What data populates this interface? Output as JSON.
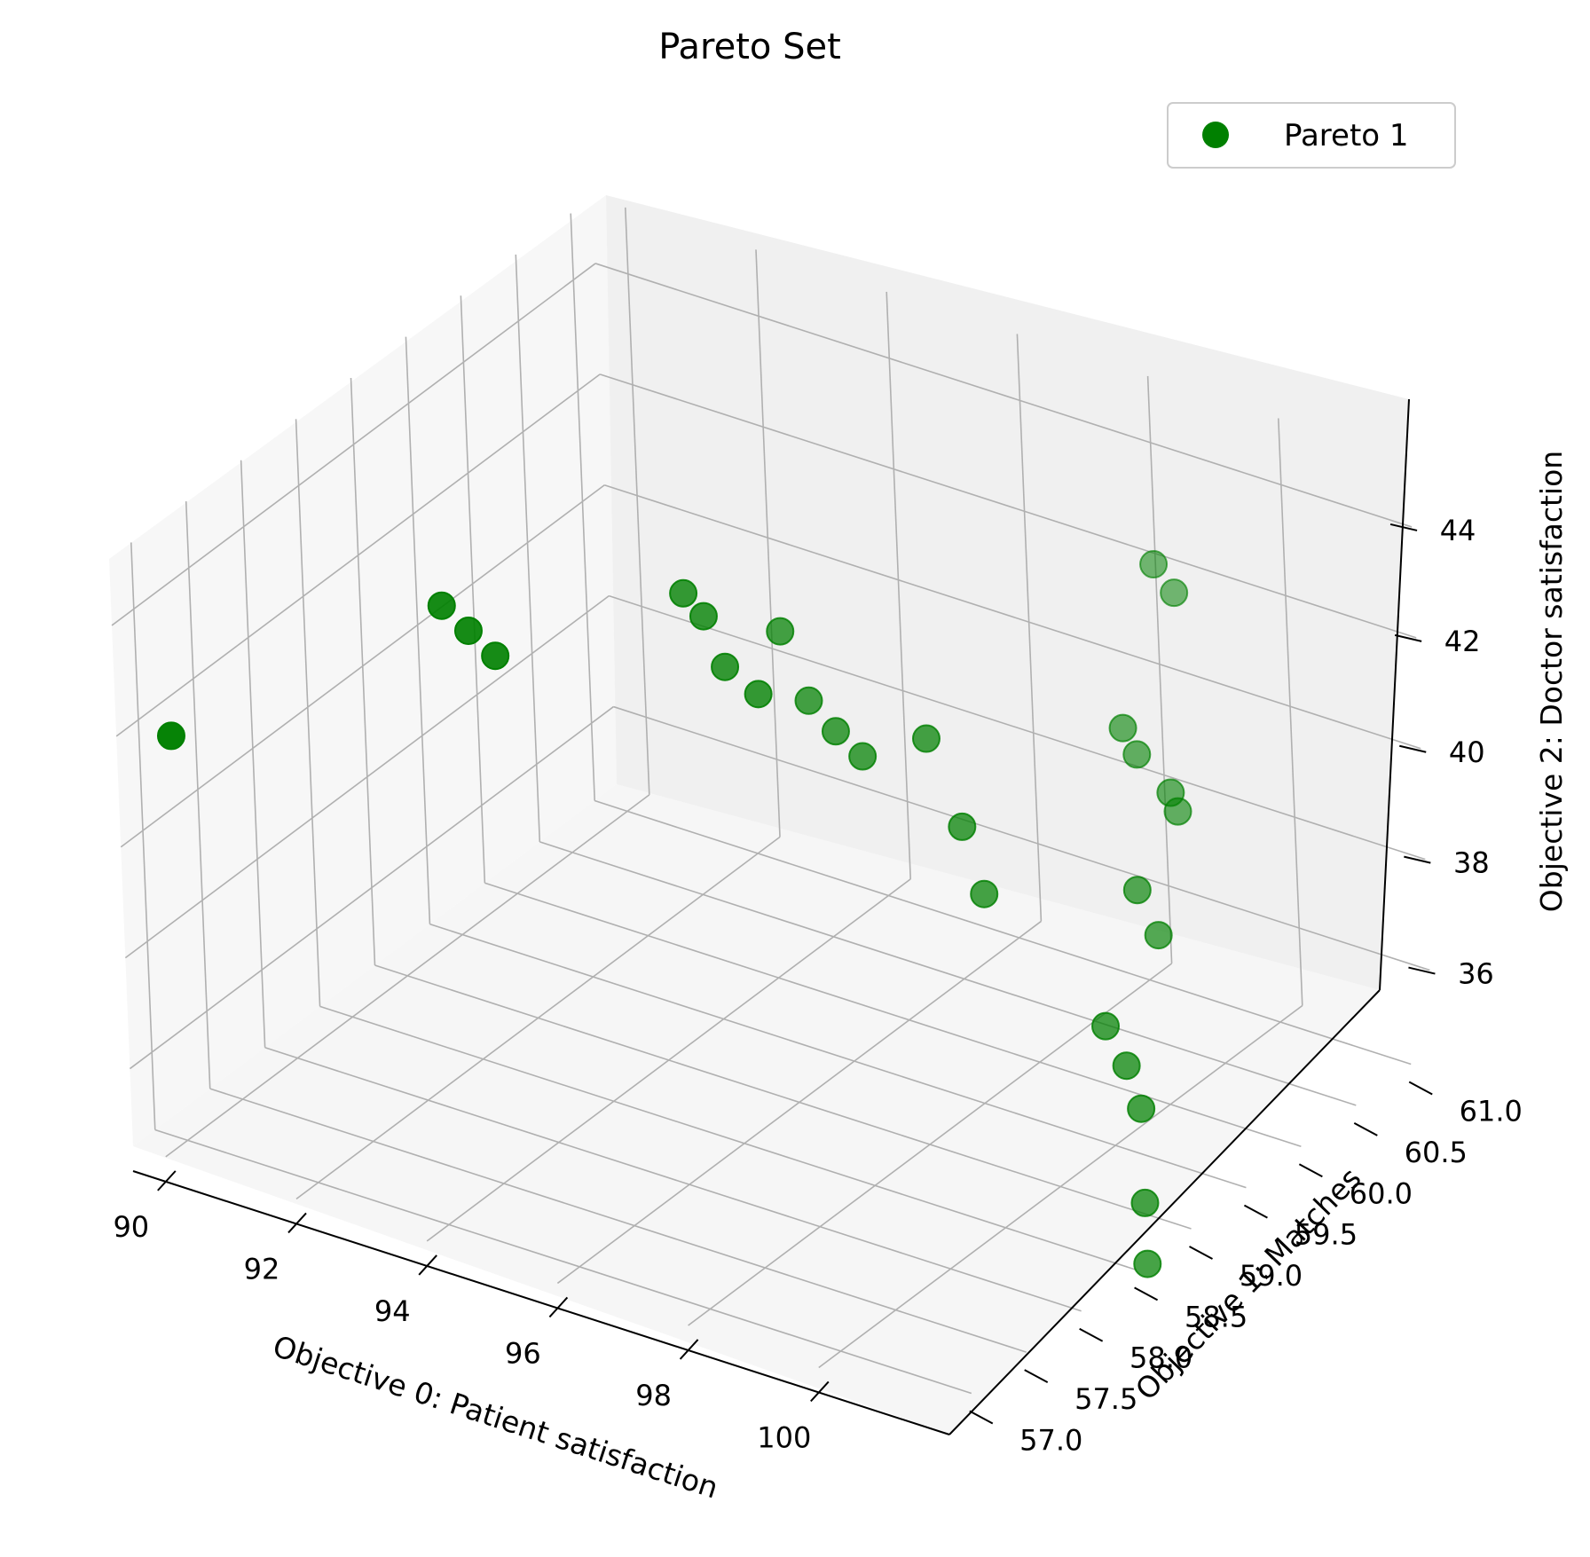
{
  "chart_data": {
    "type": "scatter",
    "title": "Pareto Set",
    "xlabel": "Objective 0: Patient satisfaction",
    "ylabel": "Objective 1: Matches",
    "zlabel": "Objective 2: Doctor satisfaction",
    "x_ticks": [
      "90",
      "92",
      "94",
      "96",
      "98",
      "100"
    ],
    "y_ticks": [
      "57.0",
      "57.5",
      "58.0",
      "58.5",
      "59.0",
      "59.5",
      "60.0",
      "60.5",
      "61.0"
    ],
    "z_ticks": [
      "36",
      "38",
      "40",
      "42",
      "44"
    ],
    "xlim": [
      89.5,
      102
    ],
    "ylim": [
      56.8,
      61.2
    ],
    "zlim": [
      34.6,
      45.2
    ],
    "grid": true,
    "legend_position": "top-right",
    "series": [
      {
        "name": "Pareto 1",
        "color": "#008000",
        "points": [
          {
            "x": 90.0,
            "y": 57.0,
            "z": 41.9
          },
          {
            "x": 93.4,
            "y": 57.5,
            "z": 44.8
          },
          {
            "x": 93.8,
            "y": 57.5,
            "z": 44.5
          },
          {
            "x": 94.2,
            "y": 57.5,
            "z": 44.2
          },
          {
            "x": 95.4,
            "y": 58.5,
            "z": 44.3
          },
          {
            "x": 95.7,
            "y": 58.5,
            "z": 44.0
          },
          {
            "x": 96.0,
            "y": 58.5,
            "z": 43.2
          },
          {
            "x": 96.5,
            "y": 58.5,
            "z": 42.9
          },
          {
            "x": 96.0,
            "y": 59.0,
            "z": 43.1
          },
          {
            "x": 96.4,
            "y": 59.0,
            "z": 42.0
          },
          {
            "x": 96.8,
            "y": 59.0,
            "z": 41.6
          },
          {
            "x": 97.2,
            "y": 59.0,
            "z": 41.3
          },
          {
            "x": 98.2,
            "y": 59.0,
            "z": 42.0
          },
          {
            "x": 98.7,
            "y": 59.0,
            "z": 40.6
          },
          {
            "x": 99.0,
            "y": 59.0,
            "z": 39.5
          },
          {
            "x": 99.2,
            "y": 60.5,
            "z": 43.3
          },
          {
            "x": 99.5,
            "y": 60.5,
            "z": 42.9
          },
          {
            "x": 99.5,
            "y": 60.0,
            "z": 41.2
          },
          {
            "x": 99.7,
            "y": 60.0,
            "z": 40.8
          },
          {
            "x": 100.2,
            "y": 60.0,
            "z": 40.3
          },
          {
            "x": 100.3,
            "y": 60.0,
            "z": 40.0
          },
          {
            "x": 100.5,
            "y": 59.5,
            "z": 39.4
          },
          {
            "x": 100.8,
            "y": 59.5,
            "z": 38.7
          },
          {
            "x": 100.8,
            "y": 59.0,
            "z": 37.8
          },
          {
            "x": 101.1,
            "y": 59.0,
            "z": 37.2
          },
          {
            "x": 101.3,
            "y": 59.0,
            "z": 36.5
          },
          {
            "x": 101.3,
            "y": 59.0,
            "z": 34.8
          },
          {
            "x": 101.3,
            "y": 59.0,
            "z": 33.7
          }
        ]
      }
    ]
  }
}
